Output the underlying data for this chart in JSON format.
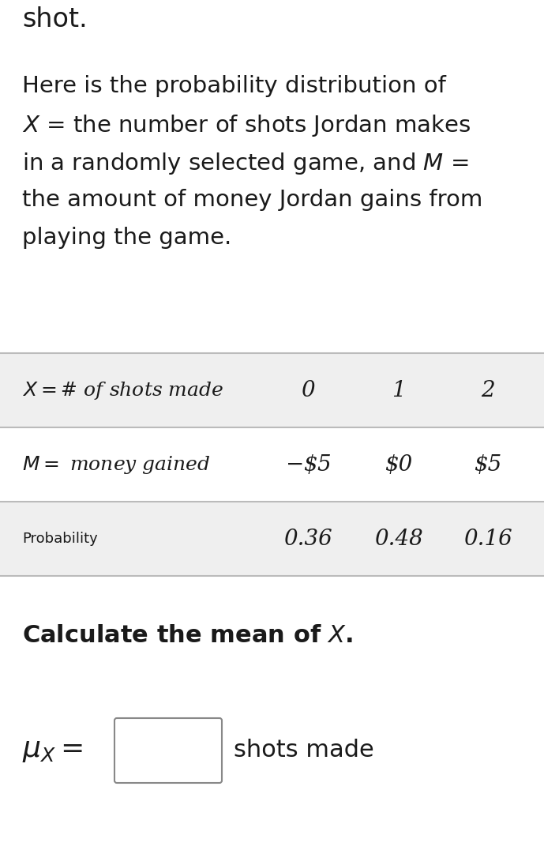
{
  "bg_color": "#ffffff",
  "top_text": "shot.",
  "para_line0": "Here is the probability distribution of",
  "para_line1_pre": "X = the number of shots Jordan makes",
  "para_line2_pre": "in a randomly selected game, and M =",
  "para_line3": "the amount of money Jordan gains from",
  "para_line4": "playing the game.",
  "table_row1_label": "X = # of shots made",
  "table_row2_label": "M = money gained",
  "table_row3_label": "Probability",
  "col_vals": [
    "0",
    "1",
    "2"
  ],
  "row2_vals": [
    "−$5",
    "$0",
    "$5"
  ],
  "row3_vals": [
    "0.36",
    "0.48",
    "0.16"
  ],
  "row_bg_odd": "#efefef",
  "row_bg_even": "#ffffff",
  "line_color": "#bbbbbb",
  "calc_text": "Calculate the mean of ",
  "mu_label": "μX =",
  "answer_suffix": " shots made",
  "text_color": "#1a1a1a",
  "fig_w": 6.89,
  "fig_h": 10.81,
  "dpi": 100
}
